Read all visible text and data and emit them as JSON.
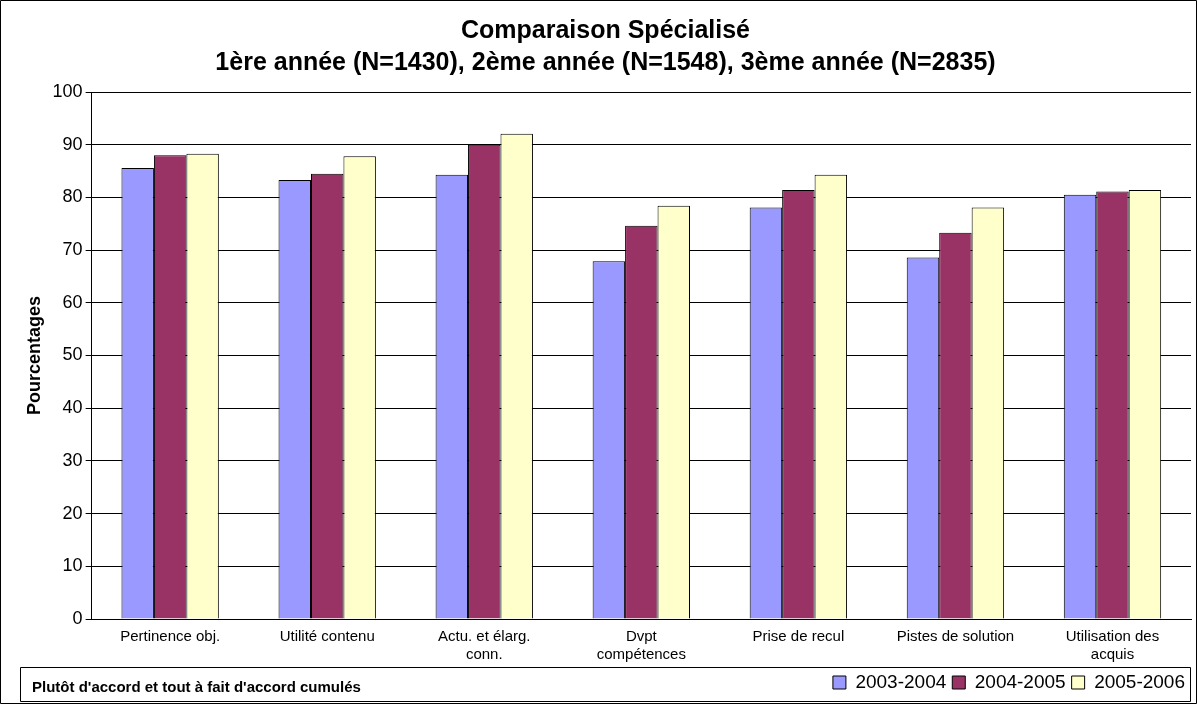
{
  "chart_data": {
    "type": "bar",
    "title": "Comparaison Spécialisé",
    "subtitle": "1ère année (N=1430), 2ème année (N=1548), 3ème année (N=2835)",
    "ylabel": "Pourcentages",
    "categories": [
      "Pertinence obj.",
      "Utilité contenu",
      "Actu. et élarg. conn.",
      "Dvpt compétences",
      "Prise de recul",
      "Pistes de solution",
      "Utilisation des acquis"
    ],
    "series": [
      {
        "name": "2003-2004",
        "color": "#9999ff",
        "values": [
          85.6,
          83.3,
          84.3,
          67.9,
          78.1,
          68.6,
          80.5
        ]
      },
      {
        "name": "2004-2005",
        "color": "#993366",
        "values": [
          88.0,
          84.5,
          90.0,
          74.6,
          81.4,
          73.3,
          81.1
        ]
      },
      {
        "name": "2005-2006",
        "color": "#ffffcc",
        "values": [
          88.3,
          87.8,
          92.1,
          78.4,
          84.3,
          78.1,
          81.4
        ]
      }
    ],
    "ylim": [
      0,
      100
    ],
    "yticks": [
      0,
      10,
      20,
      30,
      40,
      50,
      60,
      70,
      80,
      90,
      100
    ],
    "grid": "y",
    "legend": "bottom right",
    "annotations": [
      "Plutôt d'accord et tout à fait d'accord cumulés"
    ]
  }
}
